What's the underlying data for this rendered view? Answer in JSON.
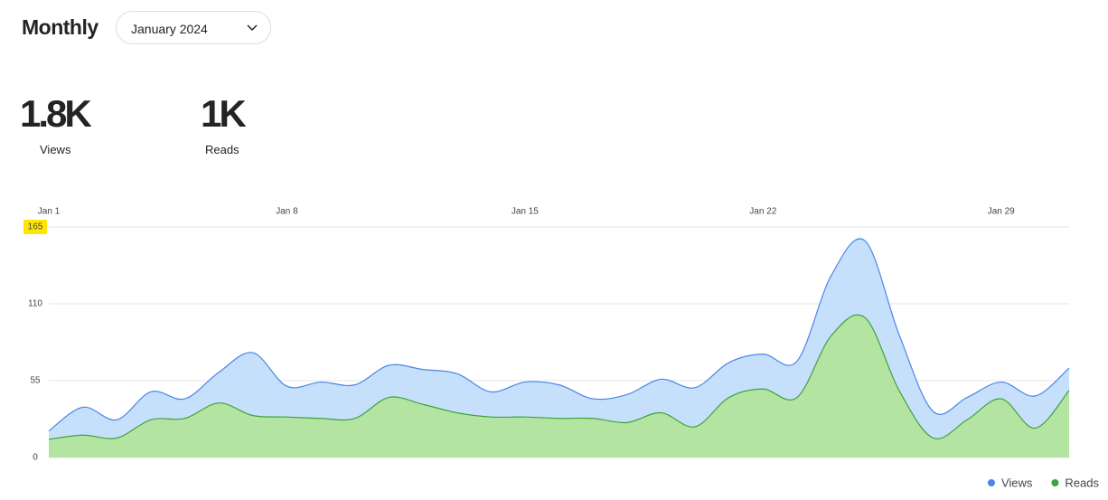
{
  "header": {
    "title": "Monthly",
    "period": "January 2024"
  },
  "stats": [
    {
      "value": "1.8K",
      "label": "Views"
    },
    {
      "value": "1K",
      "label": "Reads"
    }
  ],
  "chart_data": {
    "type": "area",
    "categories": [
      "Jan 1",
      null,
      null,
      null,
      null,
      null,
      null,
      "Jan 8",
      null,
      null,
      null,
      null,
      null,
      null,
      "Jan 15",
      null,
      null,
      null,
      null,
      null,
      null,
      "Jan 22",
      null,
      null,
      null,
      null,
      null,
      null,
      "Jan 29",
      null,
      null
    ],
    "series": [
      {
        "name": "Views",
        "color": "#4a86e8",
        "fill": "#c6e0fb",
        "values": [
          19,
          36,
          27,
          47,
          42,
          61,
          75,
          51,
          54,
          52,
          66,
          63,
          60,
          47,
          54,
          52,
          42,
          45,
          56,
          50,
          68,
          74,
          69,
          130,
          155,
          88,
          33,
          43,
          54,
          44,
          64
        ]
      },
      {
        "name": "Reads",
        "color": "#3da33d",
        "fill": "#b4e4a2",
        "values": [
          13,
          16,
          14,
          27,
          28,
          39,
          30,
          29,
          28,
          28,
          43,
          38,
          32,
          29,
          29,
          28,
          28,
          25,
          32,
          22,
          43,
          49,
          43,
          87,
          100,
          48,
          14,
          27,
          42,
          21,
          48
        ]
      }
    ],
    "ylim": [
      0,
      165
    ],
    "yticks": [
      0,
      55,
      110,
      165
    ],
    "grid": true,
    "legend": "bottom-right"
  }
}
